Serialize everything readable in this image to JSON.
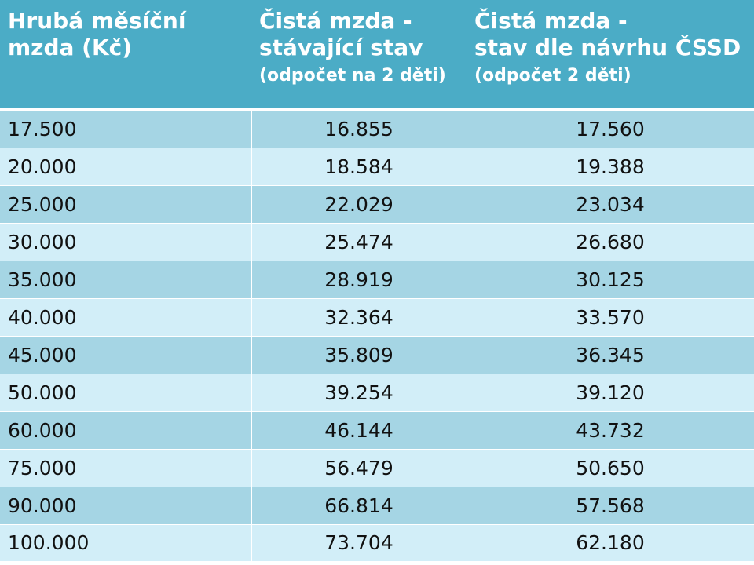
{
  "table": {
    "headers": [
      {
        "lines": [
          "Hrubá měsíční",
          "mzda (Kč)"
        ],
        "sub": ""
      },
      {
        "lines": [
          "Čistá mzda -",
          "stávající stav"
        ],
        "sub": "(odpočet na 2 děti)"
      },
      {
        "lines": [
          "Čistá mzda -",
          "stav dle návrhu ČSSD"
        ],
        "sub": "(odpočet 2 děti)"
      }
    ],
    "rows": [
      [
        "17.500",
        "16.855",
        "17.560"
      ],
      [
        "20.000",
        "18.584",
        "19.388"
      ],
      [
        "25.000",
        "22.029",
        "23.034"
      ],
      [
        "30.000",
        "25.474",
        "26.680"
      ],
      [
        "35.000",
        "28.919",
        "30.125"
      ],
      [
        "40.000",
        "32.364",
        "33.570"
      ],
      [
        "45.000",
        "35.809",
        "36.345"
      ],
      [
        "50.000",
        "39.254",
        "39.120"
      ],
      [
        "60.000",
        "46.144",
        "43.732"
      ],
      [
        "75.000",
        "56.479",
        "50.650"
      ],
      [
        "90.000",
        "66.814",
        "57.568"
      ],
      [
        "100.000",
        "73.704",
        "62.180"
      ]
    ],
    "colors": {
      "header_bg": "#4bacc6",
      "row_dark": "#a5d5e4",
      "row_light": "#d2eef8"
    }
  }
}
